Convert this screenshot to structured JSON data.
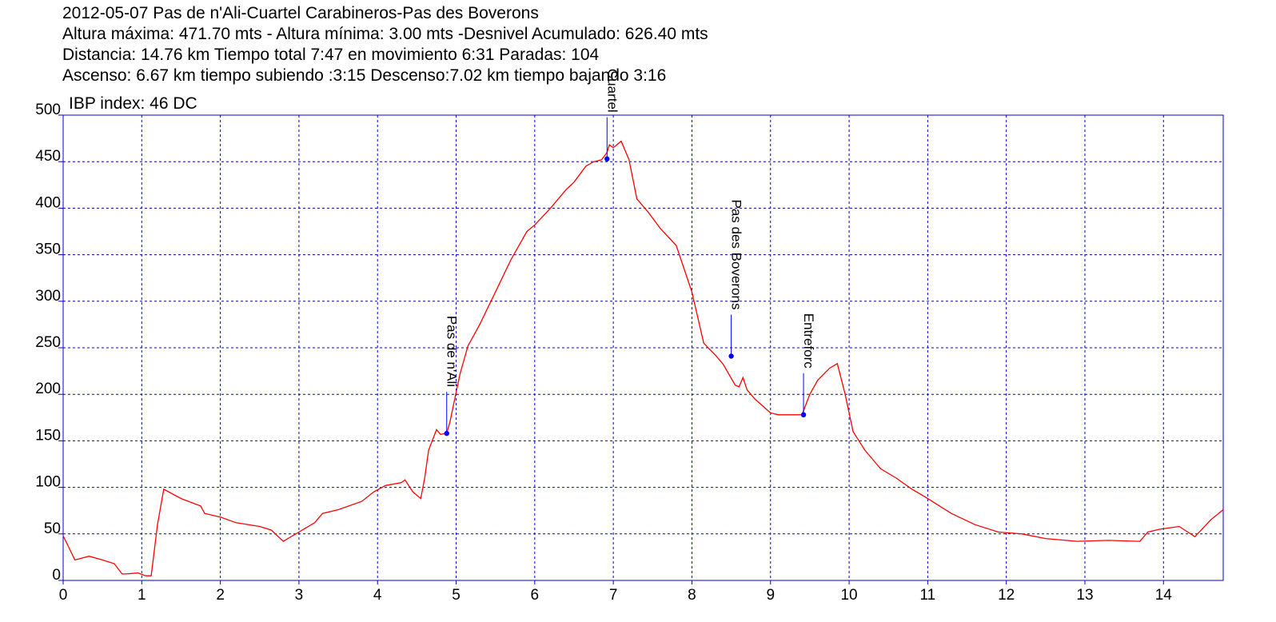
{
  "header": {
    "line1": "2012-05-07 Pas de n'Ali-Cuartel Carabineros-Pas des Boverons",
    "line2": "Altura máxima: 471.70 mts - Altura mínima: 3.00 mts -Desnivel Acumulado: 626.40 mts",
    "line3": "Distancia: 14.76 km  Tiempo total 7:47  en movimiento 6:31 Paradas: 104",
    "line4": "Ascenso: 6.67 km  tiempo subiendo :3:15  Descenso:7.02 km tiempo bajando 3:16",
    "line5": "IBP index: 46 DC"
  },
  "chart_data": {
    "type": "line",
    "xlim": [
      0,
      14.76
    ],
    "ylim": [
      0,
      500
    ],
    "x_ticks": [
      0,
      1,
      2,
      3,
      4,
      5,
      6,
      7,
      8,
      9,
      10,
      11,
      12,
      13,
      14
    ],
    "y_ticks": [
      0,
      50,
      100,
      150,
      200,
      250,
      300,
      350,
      400,
      450,
      500
    ],
    "grid": true,
    "line_color": "#ff0000",
    "axis_color": "#0000cc",
    "waypoint_color": "#0000ff",
    "series": [
      {
        "x": [
          0,
          0.15,
          0.33,
          0.5,
          0.65,
          0.75,
          0.8,
          0.95,
          1.05,
          1.12,
          1.2,
          1.28,
          1.5,
          1.75,
          1.8,
          2.0,
          2.2,
          2.5,
          2.65,
          2.8,
          3.0,
          3.2,
          3.3,
          3.5,
          3.8,
          3.95,
          4.1,
          4.3,
          4.35,
          4.45,
          4.55,
          4.6,
          4.65,
          4.75,
          4.8,
          4.88,
          4.92,
          5.05,
          5.15,
          5.3,
          5.5,
          5.7,
          5.9,
          6.0,
          6.2,
          6.4,
          6.5,
          6.65,
          6.75,
          6.85,
          6.92,
          6.95,
          7.0,
          7.1,
          7.2,
          7.3,
          7.45,
          7.6,
          7.8,
          8.0,
          8.15,
          8.3,
          8.4,
          8.55,
          8.6,
          8.65,
          8.7,
          8.8,
          9.0,
          9.1,
          9.4,
          9.5,
          9.6,
          9.75,
          9.85,
          9.95,
          10.05,
          10.2,
          10.4,
          10.6,
          10.8,
          11.0,
          11.3,
          11.6,
          11.9,
          12.2,
          12.5,
          12.9,
          13.3,
          13.7,
          13.8,
          13.95,
          14.2,
          14.4,
          14.6,
          14.76
        ],
        "y": [
          48,
          22,
          26,
          22,
          18,
          7,
          7,
          8,
          5,
          5,
          60,
          98,
          88,
          80,
          72,
          68,
          62,
          58,
          54,
          42,
          52,
          62,
          72,
          76,
          85,
          95,
          102,
          105,
          108,
          95,
          88,
          110,
          140,
          162,
          157,
          158,
          170,
          222,
          252,
          275,
          310,
          345,
          375,
          382,
          400,
          420,
          428,
          445,
          450,
          452,
          460,
          468,
          465,
          472,
          452,
          410,
          395,
          378,
          360,
          310,
          255,
          242,
          232,
          210,
          208,
          218,
          205,
          195,
          180,
          178,
          178,
          200,
          215,
          228,
          233,
          200,
          160,
          140,
          120,
          110,
          98,
          88,
          72,
          60,
          52,
          50,
          45,
          42,
          43,
          42,
          52,
          55,
          58,
          47,
          65,
          76
        ]
      }
    ],
    "waypoints": [
      {
        "name": "Pas de n'Ali",
        "x": 4.88,
        "y": 158
      },
      {
        "name": "Cuartel",
        "x": 6.92,
        "y": 453
      },
      {
        "name": "Pas des Boverons",
        "x": 8.5,
        "y": 241
      },
      {
        "name": "Entreforc",
        "x": 9.42,
        "y": 178
      }
    ]
  }
}
